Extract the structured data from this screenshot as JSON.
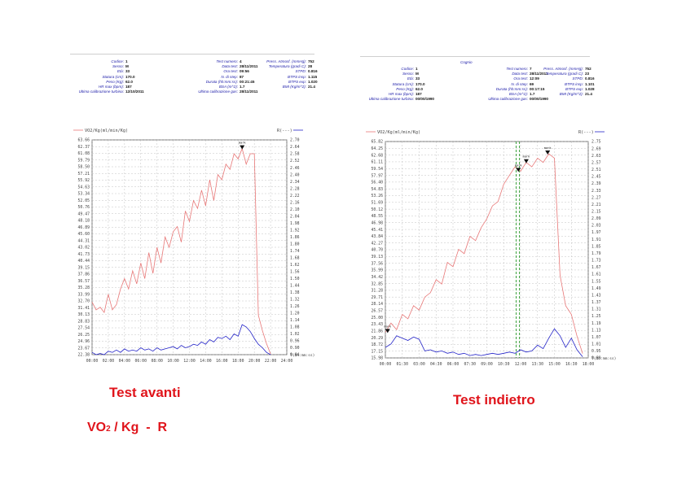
{
  "left_header": {
    "title": "",
    "col1": [
      {
        "label": "Codice:",
        "value": "1"
      },
      {
        "label": "Sesso:",
        "value": "M"
      },
      {
        "label": "Età:",
        "value": "33"
      },
      {
        "label": "Statura (cm):",
        "value": "170.0"
      },
      {
        "label": "Peso (Kg):",
        "value": "62.0"
      },
      {
        "label": "HR max (bpm):",
        "value": "187"
      },
      {
        "label": "Ultima calibrazione turbina:",
        "value": "12/10/2011"
      }
    ],
    "col2": [
      {
        "label": "Test numero:",
        "value": "4"
      },
      {
        "label": "Data test:",
        "value": "28/11/2011"
      },
      {
        "label": "Ora test:",
        "value": "09:56"
      },
      {
        "label": "N. di step:",
        "value": "87"
      },
      {
        "label": "Durata (hh:mm:ss):",
        "value": "00:21:45"
      },
      {
        "label": "BSA (m^2):",
        "value": "1.7"
      },
      {
        "label": "Ultima calibrazione gas:",
        "value": "28/11/2011"
      }
    ],
    "col3": [
      {
        "label": "Press. Atmosf. (mmHg):",
        "value": "752"
      },
      {
        "label": "Temperatura (gradi C):",
        "value": "28"
      },
      {
        "label": "STPD:",
        "value": "0.816"
      },
      {
        "label": "BTPS insp:",
        "value": "1.115"
      },
      {
        "label": "BTPS exp:",
        "value": "1.020"
      },
      {
        "label": "BMI (Kg/m^2):",
        "value": "21.4"
      }
    ]
  },
  "right_header": {
    "title": "Cognio",
    "col1": [
      {
        "label": "Codice:",
        "value": "1"
      },
      {
        "label": "Sesso:",
        "value": "M"
      },
      {
        "label": "Età:",
        "value": "33"
      },
      {
        "label": "Statura (cm):",
        "value": "170.0"
      },
      {
        "label": "Peso (Kg):",
        "value": "62.0"
      },
      {
        "label": "HR max (bpm):",
        "value": "187"
      },
      {
        "label": "Ultima calibrazione turbina:",
        "value": "00/00/1990"
      }
    ],
    "col2": [
      {
        "label": "Test numero:",
        "value": "7"
      },
      {
        "label": "Data test:",
        "value": "28/11/2011"
      },
      {
        "label": "Ora test:",
        "value": "12:09"
      },
      {
        "label": "N. di step:",
        "value": "69"
      },
      {
        "label": "Durata (hh:mm:ss):",
        "value": "00:17:15"
      },
      {
        "label": "BSA (m^2):",
        "value": "1.7"
      },
      {
        "label": "Ultima calibrazione gas:",
        "value": "00/00/1990"
      }
    ],
    "col3": [
      {
        "label": "Press. Atmosf. (mmHg):",
        "value": "752"
      },
      {
        "label": "Temperatura (gradi C):",
        "value": "23"
      },
      {
        "label": "STPD:",
        "value": "0.816"
      },
      {
        "label": "BTPS insp:",
        "value": "1.101"
      },
      {
        "label": "BTPS exp:",
        "value": "1.028"
      },
      {
        "label": "BMI (Kg/m^2):",
        "value": "21.4"
      }
    ]
  },
  "captions": {
    "left": "Test avanti",
    "right": "Test indietro",
    "legend_prefix": "VO",
    "legend_sub": "2",
    "legend_rest": " / Kg  -  R"
  },
  "colors": {
    "vo2": "#e87878",
    "r": "#2424c8",
    "grid": "#b4b4b4",
    "caption": "#e0141b",
    "green_marker": "#2a9a2a"
  },
  "chart_data": [
    {
      "type": "line",
      "ylabel_left": "VO2/Kg(ml/min/Kg)",
      "ylabel_right": "R(---)",
      "xlabel": "T(hh:mm:ss)",
      "ylim_left": [
        22.38,
        63.66
      ],
      "ylim_right": [
        0.84,
        2.7
      ],
      "xlim_minutes": [
        0,
        24
      ],
      "yticks_left": [
        "63.66",
        "62.37",
        "61.08",
        "59.79",
        "58.50",
        "57.21",
        "55.92",
        "54.63",
        "53.34",
        "52.05",
        "50.76",
        "49.47",
        "48.18",
        "46.89",
        "45.60",
        "44.31",
        "43.02",
        "41.73",
        "40.44",
        "39.15",
        "37.86",
        "36.57",
        "35.28",
        "33.99",
        "32.70",
        "31.41",
        "30.13",
        "28.83",
        "27.54",
        "26.25",
        "24.96",
        "23.67",
        "22.38"
      ],
      "yticks_right": [
        "2.70",
        "2.64",
        "2.58",
        "2.52",
        "2.46",
        "2.40",
        "2.34",
        "2.28",
        "2.22",
        "2.16",
        "2.10",
        "2.04",
        "1.98",
        "1.92",
        "1.86",
        "1.80",
        "1.74",
        "1.68",
        "1.62",
        "1.56",
        "1.50",
        "1.44",
        "1.38",
        "1.32",
        "1.26",
        "1.20",
        "1.14",
        "1.08",
        "1.02",
        "0.96",
        "0.90",
        "0.84"
      ],
      "xticks": [
        "00:00",
        "02:00",
        "04:00",
        "06:00",
        "08:00",
        "10:00",
        "12:00",
        "14:00",
        "16:00",
        "18:00",
        "20:00",
        "22:00",
        "24:00"
      ],
      "series": [
        {
          "name": "VO2/Kg",
          "axis": "left",
          "x": [
            0,
            0.5,
            1,
            1.5,
            2,
            2.5,
            3,
            3.5,
            4,
            4.5,
            5,
            5.5,
            6,
            6.5,
            7,
            7.5,
            8,
            8.5,
            9,
            9.5,
            10,
            10.5,
            11,
            11.5,
            12,
            12.5,
            13,
            13.5,
            14,
            14.5,
            15,
            15.5,
            16,
            16.5,
            17,
            17.5,
            18,
            18.5,
            19,
            19.5,
            20,
            20.5,
            21,
            21.5,
            22
          ],
          "y": [
            32.5,
            31,
            31.5,
            30.5,
            34,
            31,
            32,
            35,
            37,
            35,
            38.5,
            36,
            40,
            37,
            42,
            38,
            43,
            40,
            45,
            43,
            46,
            47,
            44,
            50,
            48,
            52,
            50.5,
            54,
            51,
            56,
            52,
            57,
            56,
            59,
            58,
            61,
            60,
            62,
            59,
            61,
            61,
            30,
            27,
            24.5,
            22.5
          ]
        },
        {
          "name": "R",
          "axis": "right",
          "x": [
            0,
            0.5,
            1,
            1.5,
            2,
            2.5,
            3,
            3.5,
            4,
            4.5,
            5,
            5.5,
            6,
            6.5,
            7,
            7.5,
            8,
            8.5,
            9,
            9.5,
            10,
            10.5,
            11,
            11.5,
            12,
            12.5,
            13,
            13.5,
            14,
            14.5,
            15,
            15.5,
            16,
            16.5,
            17,
            17.5,
            18,
            18.5,
            19,
            19.5,
            20,
            20.5,
            21,
            21.5,
            22
          ],
          "y": [
            0.86,
            0.84,
            0.85,
            0.84,
            0.87,
            0.86,
            0.88,
            0.86,
            0.89,
            0.87,
            0.88,
            0.87,
            0.9,
            0.88,
            0.89,
            0.87,
            0.9,
            0.88,
            0.89,
            0.9,
            0.91,
            0.89,
            0.92,
            0.9,
            0.91,
            0.93,
            0.92,
            0.95,
            0.93,
            0.97,
            0.95,
            0.99,
            0.98,
            1.0,
            0.97,
            1.02,
            1.0,
            1.1,
            1.08,
            1.04,
            0.98,
            0.93,
            0.9,
            0.86,
            0.84
          ]
        }
      ],
      "annotations": [
        {
          "label": "mark",
          "x": 18.5
        }
      ]
    },
    {
      "type": "line",
      "ylabel_left": "VO2/Kg(ml/min/Kg)",
      "ylabel_right": "R(---)",
      "xlabel": "T(hh:mm:ss)",
      "ylim_left": [
        15.98,
        65.82
      ],
      "ylim_right": [
        0.89,
        2.75
      ],
      "xlim_minutes": [
        0,
        18
      ],
      "yticks_left": [
        "65.82",
        "64.25",
        "62.68",
        "61.11",
        "59.54",
        "57.97",
        "56.40",
        "54.83",
        "53.26",
        "51.69",
        "50.12",
        "48.55",
        "46.98",
        "45.41",
        "43.84",
        "42.27",
        "40.70",
        "39.13",
        "37.56",
        "35.99",
        "34.42",
        "32.85",
        "31.28",
        "29.71",
        "28.14",
        "26.57",
        "25.00",
        "23.43",
        "21.86",
        "20.29",
        "18.72",
        "17.15",
        "15.98"
      ],
      "yticks_right": [
        "2.75",
        "2.69",
        "2.63",
        "2.57",
        "2.51",
        "2.45",
        "2.39",
        "2.33",
        "2.27",
        "2.21",
        "2.15",
        "2.09",
        "2.03",
        "1.97",
        "1.91",
        "1.85",
        "1.79",
        "1.73",
        "1.67",
        "1.61",
        "1.55",
        "1.49",
        "1.43",
        "1.37",
        "1.31",
        "1.25",
        "1.19",
        "1.13",
        "1.07",
        "1.01",
        "0.95",
        "0.89"
      ],
      "xticks": [
        "00:00",
        "01:30",
        "03:00",
        "04:30",
        "06:00",
        "07:30",
        "09:00",
        "10:30",
        "12:00",
        "13:30",
        "15:00",
        "16:30",
        "18:00"
      ],
      "series": [
        {
          "name": "VO2/Kg",
          "axis": "left",
          "x": [
            0,
            0.5,
            1,
            1.5,
            2,
            2.5,
            3,
            3.5,
            4,
            4.5,
            5,
            5.5,
            6,
            6.5,
            7,
            7.5,
            8,
            8.5,
            9,
            9.5,
            10,
            10.5,
            11,
            11.5,
            12,
            12.5,
            13,
            13.5,
            14,
            14.5,
            15,
            15.5,
            16,
            16.5,
            17,
            17.5
          ],
          "y": [
            21.9,
            24,
            22.5,
            26,
            25,
            28,
            27,
            30,
            31,
            34,
            33,
            38,
            37,
            41,
            40,
            44,
            43,
            46,
            48,
            51,
            52,
            56,
            58,
            60,
            59,
            61,
            60,
            62,
            61,
            63,
            62,
            35,
            28,
            26,
            21,
            17
          ]
        },
        {
          "name": "R",
          "axis": "right",
          "x": [
            0,
            0.5,
            1,
            1.5,
            2,
            2.5,
            3,
            3.5,
            4,
            4.5,
            5,
            5.5,
            6,
            6.5,
            7,
            7.5,
            8,
            8.5,
            9,
            9.5,
            10,
            10.5,
            11,
            11.5,
            12,
            12.5,
            13,
            13.5,
            14,
            14.5,
            15,
            15.5,
            16,
            16.5,
            17,
            17.5
          ],
          "y": [
            0.98,
            1.01,
            1.08,
            1.06,
            1.04,
            1.07,
            1.05,
            0.95,
            0.96,
            0.94,
            0.95,
            0.93,
            0.94,
            0.92,
            0.93,
            0.91,
            0.92,
            0.91,
            0.92,
            0.93,
            0.92,
            0.93,
            0.94,
            0.93,
            0.96,
            0.94,
            0.95,
            1.0,
            0.97,
            1.06,
            1.14,
            1.08,
            0.98,
            1.06,
            0.96,
            0.9
          ]
        }
      ],
      "annotations": [
        {
          "label": "mark",
          "x": 0.2
        },
        {
          "label": "mark",
          "x": 11.8
        },
        {
          "label": "mark",
          "x": 12.5
        },
        {
          "label": "mark",
          "x": 14.4
        }
      ],
      "vertical_markers": [
        11.6,
        11.9
      ]
    }
  ]
}
